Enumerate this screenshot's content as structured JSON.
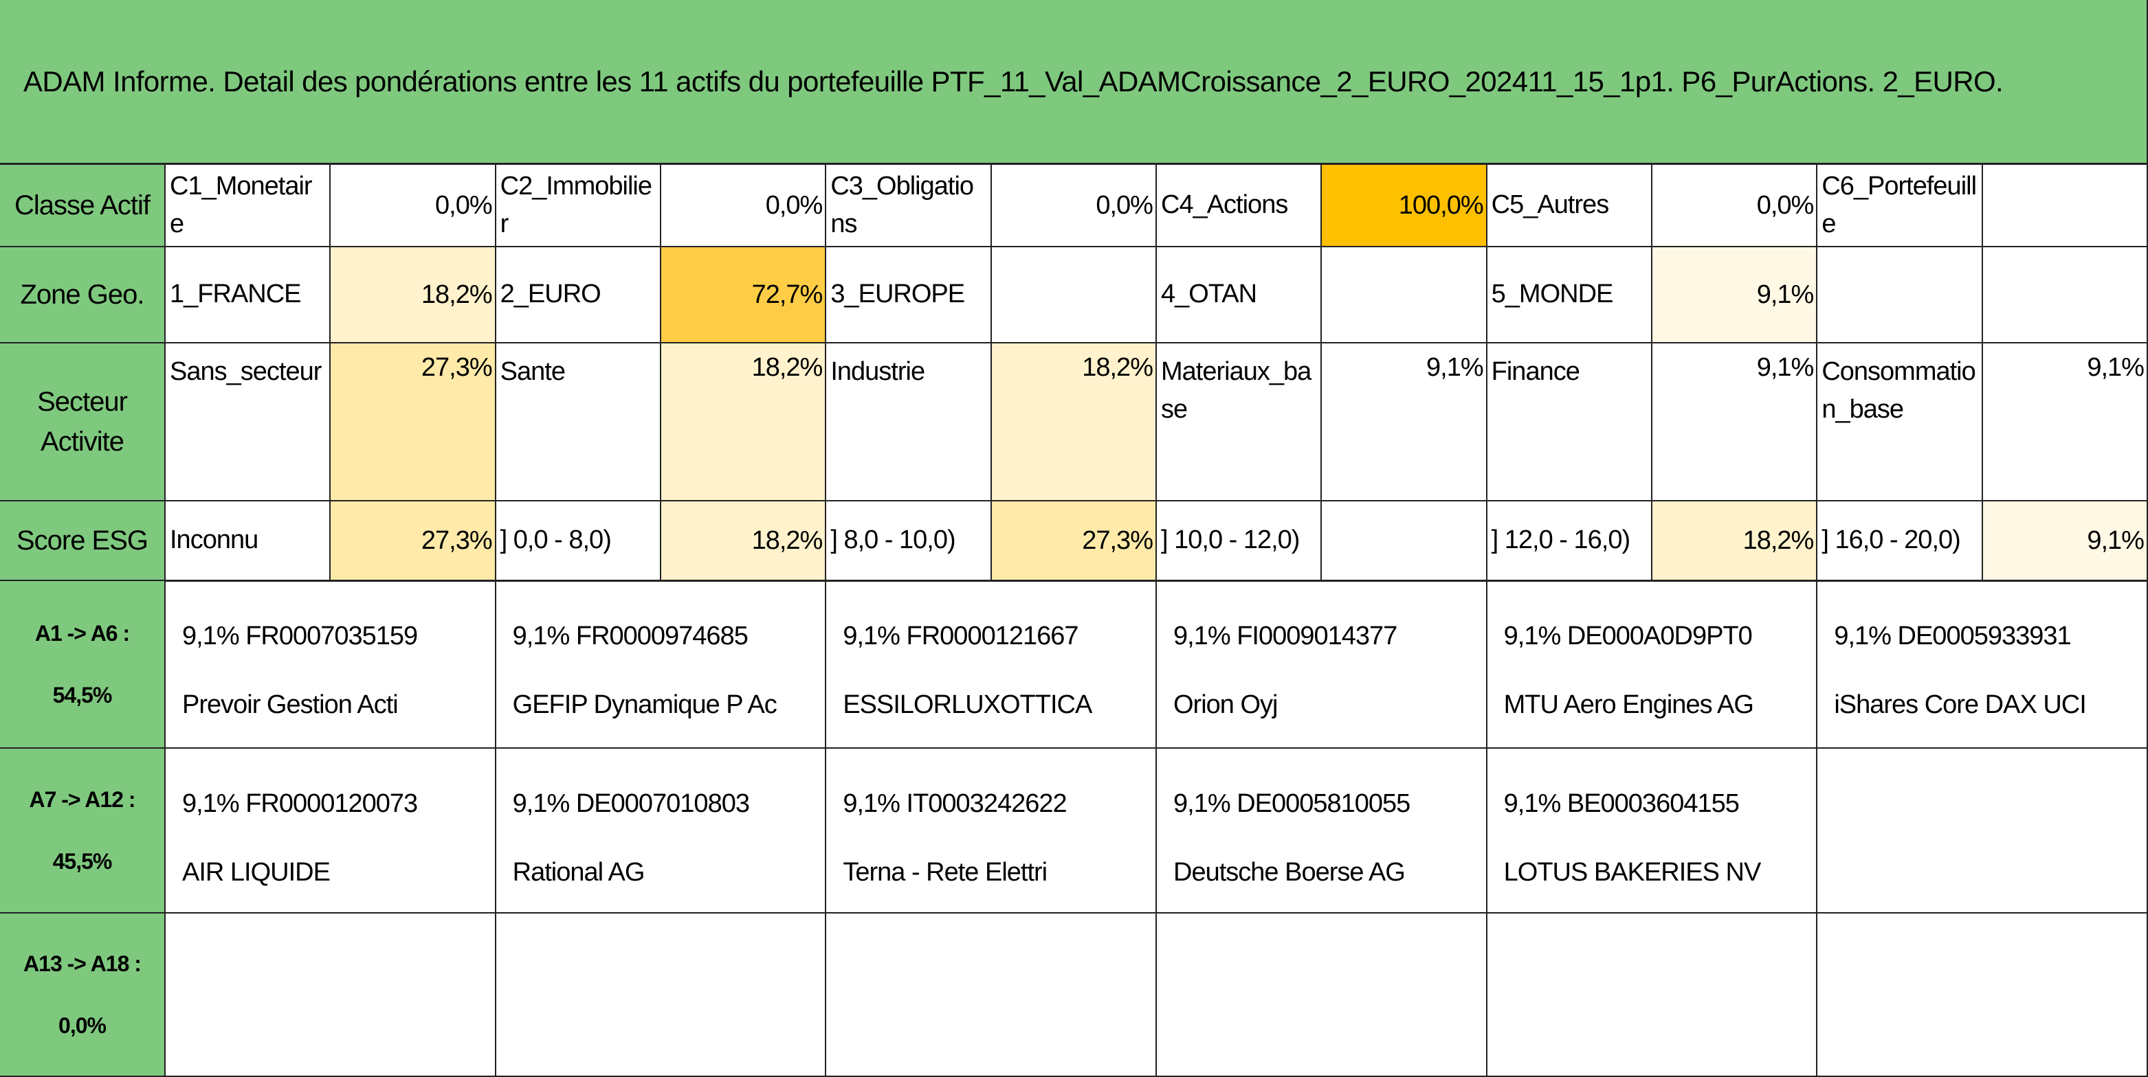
{
  "header": {
    "title": "ADAM Informe. Detail des pondérations entre les 11 actifs du portefeuille PTF_11_Val_ADAMCroissance_2_EURO_202411_15_1p1. P6_PurActions. 2_EURO."
  },
  "summary_rows": [
    {
      "label": "Classe Actif",
      "cells": [
        {
          "name": "C1_Monetaire",
          "value": "0,0%"
        },
        {
          "name": "C2_Immobilier",
          "value": "0,0%"
        },
        {
          "name": "C3_Obligations",
          "value": "0,0%"
        },
        {
          "name": "C4_Actions",
          "value": "100,0%",
          "color": "#ffc000"
        },
        {
          "name": "C5_Autres",
          "value": "0,0%"
        },
        {
          "name": "C6_Portefeuille"
        }
      ]
    },
    {
      "label": "Zone Geo.",
      "cells": [
        {
          "name": "1_FRANCE",
          "value": "18,2%",
          "color": "#fff2cc"
        },
        {
          "name": "2_EURO",
          "value": "72,7%",
          "color": "#ffcd45"
        },
        {
          "name": "3_EUROPE"
        },
        {
          "name": "4_OTAN"
        },
        {
          "name": "5_MONDE",
          "value": "9,1%",
          "color": "#fff8e5"
        }
      ]
    },
    {
      "label": "Secteur Activite",
      "cells": [
        {
          "name": "Sans_secteur",
          "value": "27,3%",
          "color": "#ffeaa9"
        },
        {
          "name": "Sante",
          "value": "18,2%",
          "color": "#fff2cc"
        },
        {
          "name": "Industrie",
          "value": "18,2%",
          "color": "#fff2cc"
        },
        {
          "name": "Materiaux_base",
          "value": "9,1%"
        },
        {
          "name": "Finance",
          "value": "9,1%"
        },
        {
          "name": "Consommation_base",
          "value": "9,1%"
        }
      ]
    },
    {
      "label": "Score ESG",
      "cells": [
        {
          "name": "Inconnu",
          "value": "27,3%",
          "color": "#ffeaa9"
        },
        {
          "name": "] 0,0 - 8,0)",
          "value": "18,2%",
          "color": "#fff2cc"
        },
        {
          "name": "] 8,0 - 10,0)",
          "value": "27,3%",
          "color": "#ffeaa9"
        },
        {
          "name": "] 10,0 - 12,0)"
        },
        {
          "name": "] 12,0 - 16,0)",
          "value": "18,2%",
          "color": "#fff2cc"
        },
        {
          "name": "] 16,0 - 20,0)",
          "value": "9,1%",
          "color": "#fff8e5"
        }
      ]
    }
  ],
  "asset_rows": [
    {
      "label": "A1 -> A6 :",
      "total": "54,5%",
      "assets": [
        {
          "weight": "9,1%",
          "isin": "FR0007035159",
          "name": "Prevoir Gestion Acti"
        },
        {
          "weight": "9,1%",
          "isin": "FR0000974685",
          "name": "GEFIP Dynamique P Ac"
        },
        {
          "weight": "9,1%",
          "isin": "FR0000121667",
          "name": "ESSILORLUXOTTICA"
        },
        {
          "weight": "9,1%",
          "isin": "FI0009014377",
          "name": "Orion Oyj"
        },
        {
          "weight": "9,1%",
          "isin": "DE000A0D9PT0",
          "name": "MTU Aero Engines AG"
        },
        {
          "weight": "9,1%",
          "isin": "DE0005933931",
          "name": "iShares Core DAX UCI"
        }
      ]
    },
    {
      "label": "A7 -> A12 :",
      "total": "45,5%",
      "assets": [
        {
          "weight": "9,1%",
          "isin": "FR0000120073",
          "name": "AIR LIQUIDE"
        },
        {
          "weight": "9,1%",
          "isin": "DE0007010803",
          "name": "Rational AG"
        },
        {
          "weight": "9,1%",
          "isin": "IT0003242622",
          "name": "Terna - Rete Elettri"
        },
        {
          "weight": "9,1%",
          "isin": "DE0005810055",
          "name": "Deutsche Boerse AG"
        },
        {
          "weight": "9,1%",
          "isin": "BE0003604155",
          "name": "LOTUS BAKERIES NV"
        }
      ]
    },
    {
      "label": "A13 -> A18 :",
      "total": "0,0%",
      "assets": []
    }
  ]
}
